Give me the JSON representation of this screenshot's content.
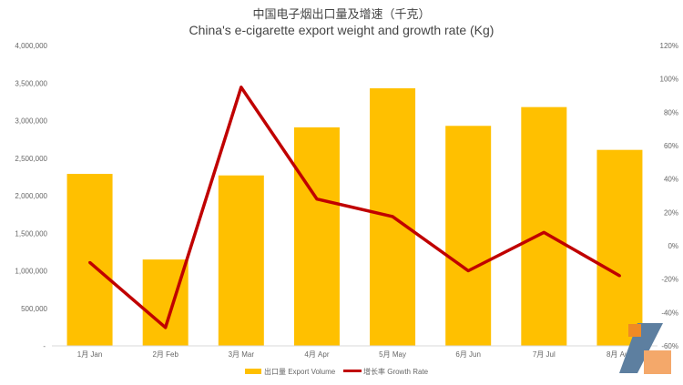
{
  "chart_data": {
    "type": "bar+line",
    "title": "中国电子烟出口量及增速（千克）",
    "subtitle": "China's e-cigarette export weight and growth rate (Kg)",
    "categories": [
      "1月 Jan",
      "2月 Feb",
      "3月 Mar",
      "4月 Apr",
      "5月 May",
      "6月 Jun",
      "7月 Jul",
      "8月 Aug"
    ],
    "series": [
      {
        "name": "出口量 Export Volume",
        "type": "bar",
        "axis": "left",
        "color": "#FFC000",
        "values": [
          2290000,
          1150000,
          2270000,
          2910000,
          3430000,
          2930000,
          3180000,
          2610000
        ]
      },
      {
        "name": "增长率 Growth Rate",
        "type": "line",
        "axis": "right",
        "color": "#C00000",
        "values": [
          -10,
          -49,
          95,
          28,
          17.5,
          -15,
          8,
          -18
        ]
      }
    ],
    "left_axis": {
      "ylim": [
        0,
        4000000
      ],
      "ticks": [
        "-",
        "500,000",
        "1,000,000",
        "1,500,000",
        "2,000,000",
        "2,500,000",
        "3,000,000",
        "3,500,000",
        "4,000,000"
      ]
    },
    "right_axis": {
      "ylim": [
        -60,
        120
      ],
      "ticks": [
        "-60%",
        "-40%",
        "-20%",
        "0%",
        "20%",
        "40%",
        "60%",
        "80%",
        "100%",
        "120%"
      ]
    },
    "legend": "bottom",
    "grid": false
  }
}
